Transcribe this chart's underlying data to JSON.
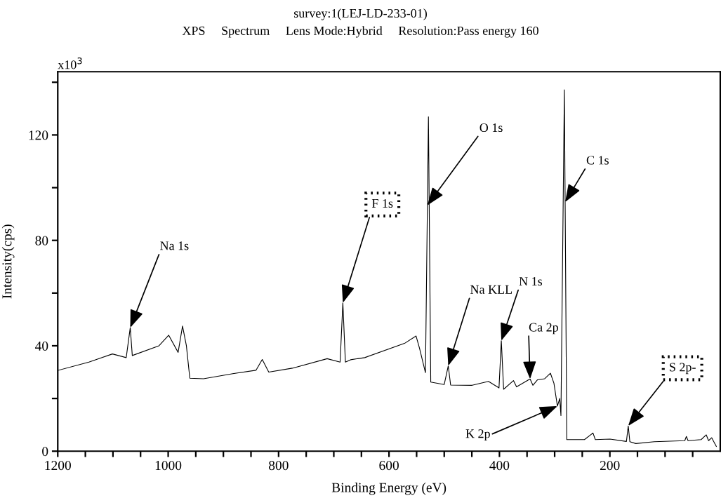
{
  "chart_data": {
    "type": "line",
    "title": "survey:1(LEJ-LD-233-01)",
    "subtitle": "XPS     Spectrum     Lens Mode:Hybrid     Resolution:Pass energy 160",
    "xlabel": "Binding Energy (eV)",
    "ylabel": "Intensity(cps)",
    "xlim": [
      1200,
      0
    ],
    "ylim": [
      0,
      144
    ],
    "xticks": [
      1200,
      {
        "value": 1150,
        "label": null
      },
      {
        "value": 1100,
        "label": null
      },
      {
        "value": 1050,
        "label": null
      },
      1000,
      {
        "value": 950,
        "label": null
      },
      {
        "value": 900,
        "label": null
      },
      {
        "value": 850,
        "label": null
      },
      800,
      {
        "value": 750,
        "label": null
      },
      {
        "value": 700,
        "label": null
      },
      {
        "value": 650,
        "label": null
      },
      600,
      {
        "value": 550,
        "label": null
      },
      {
        "value": 500,
        "label": null
      },
      {
        "value": 450,
        "label": null
      },
      400,
      {
        "value": 350,
        "label": null
      },
      {
        "value": 300,
        "label": null
      },
      {
        "value": 250,
        "label": null
      },
      200,
      {
        "value": 150,
        "label": null
      },
      {
        "value": 100,
        "label": null
      },
      {
        "value": 50,
        "label": null
      }
    ],
    "yticks": [
      0,
      {
        "value": 20,
        "label": null
      },
      40,
      {
        "value": 60,
        "label": null
      },
      80,
      {
        "value": 100,
        "label": null
      },
      120,
      {
        "value": 140,
        "label": null
      }
    ],
    "grid": false,
    "legend": false,
    "marker": "none",
    "line_style": "solid",
    "series": [
      {
        "color": "#000000",
        "x": [
          1199,
          1143.6,
          1101,
          1076,
          1068.7,
          1065,
          1016.6,
          999,
          982,
          974,
          967,
          960.8,
          936,
          881,
          841,
          829.6,
          817.8,
          775,
          712,
          688.6,
          683.6,
          679,
          669.6,
          644,
          572,
          551,
          544.8,
          534,
          528.6,
          524.4,
          500,
          492.7,
          488.4,
          449.5,
          419.8,
          400.8,
          396.6,
          392.4,
          374.6,
          369,
          344.5,
          339.4,
          331,
          318,
          307.7,
          301.3,
          295,
          290.8,
          288.6,
          282.4,
          278,
          246,
          230.6,
          226.3,
          199.7,
          170,
          166.7,
          163.8,
          153,
          119.4,
          64.3,
          61.4,
          58.4,
          34.7,
          25.4,
          21.2,
          15.6,
          7.1
        ],
        "values": [
          30.7,
          33.8,
          36.9,
          35.5,
          46.9,
          36.3,
          40.0,
          44.0,
          37.5,
          47.5,
          40.0,
          27.7,
          27.5,
          29.5,
          30.7,
          34.8,
          30.0,
          31.5,
          35.1,
          33.8,
          56.3,
          33.8,
          34.7,
          35.5,
          40.9,
          43.7,
          39.1,
          29.8,
          126.9,
          26.2,
          25.3,
          32.4,
          25.1,
          25.0,
          26.5,
          24.0,
          41.9,
          23.5,
          26.8,
          24.4,
          27.4,
          25.0,
          27.1,
          27.5,
          29.6,
          25.8,
          17.1,
          20.0,
          13.5,
          137.1,
          4.4,
          4.4,
          6.9,
          4.4,
          4.6,
          3.7,
          9.6,
          3.6,
          2.9,
          3.6,
          4.0,
          5.6,
          4.0,
          4.4,
          6.2,
          4.0,
          5.1,
          1.8
        ]
      }
    ],
    "annotations": [
      "x10$^{3}$",
      {
        "text": "Na 1s",
        "x": 1068.7,
        "y": 46.9
      },
      {
        "text": "F 1s",
        "x": 683.6,
        "y": 56.3
      },
      {
        "text": "O 1s",
        "x": 530.5,
        "y": 93.3
      },
      {
        "text": "Na KLL",
        "x": 492.7,
        "y": 32.4
      },
      {
        "text": "N 1s",
        "x": 396.6,
        "y": 41.9
      },
      {
        "text": "Ca 2p",
        "x": 344.5,
        "y": 27.4
      },
      {
        "text": "C 1s",
        "x": 281,
        "y": 94.5
      },
      {
        "text": "K 2p",
        "x": 295,
        "y": 17.1
      },
      {
        "text": "S 2p-",
        "x": 166.7,
        "y": 9.6
      }
    ]
  }
}
